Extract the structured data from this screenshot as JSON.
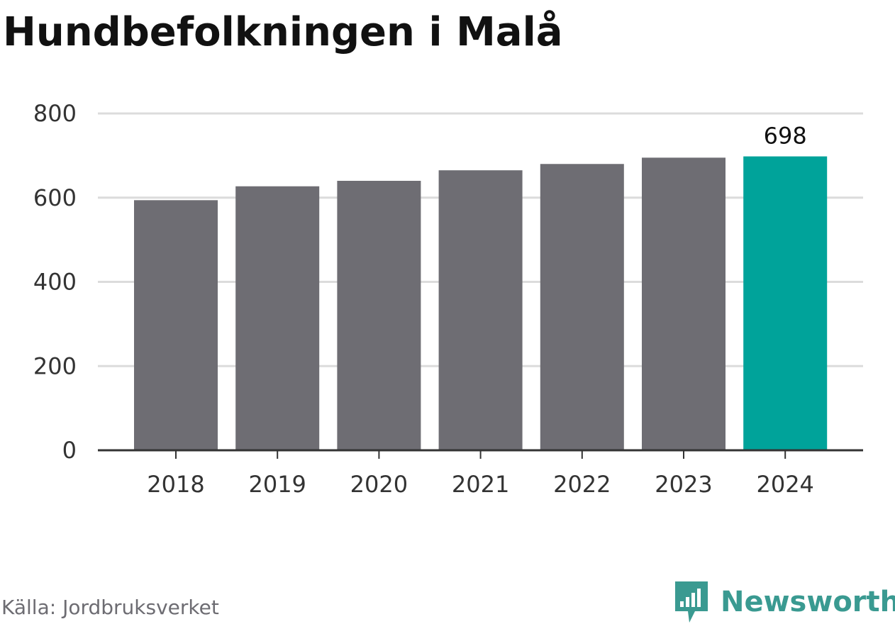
{
  "title": "Hundbefolkningen i Malå",
  "source": "Källa: Jordbruksverket",
  "brand": {
    "name": "Newsworthy",
    "icon": "newsworthy-logo-icon",
    "color": "#3a9a91"
  },
  "colors": {
    "bar": "#6e6d73",
    "highlight": "#00a39a",
    "grid": "#dcdcdc",
    "axis": "#333333",
    "tick_text": "#333333"
  },
  "chart_data": {
    "type": "bar",
    "categories": [
      "2018",
      "2019",
      "2020",
      "2021",
      "2022",
      "2023",
      "2024"
    ],
    "values": [
      594,
      627,
      640,
      665,
      680,
      695,
      698
    ],
    "highlight_index": 6,
    "data_labels": [
      {
        "index": 6,
        "text": "698"
      }
    ],
    "yticks": [
      "0",
      "200",
      "400",
      "600",
      "800"
    ],
    "ylim": [
      0,
      800
    ],
    "grid": true,
    "legend": "none"
  }
}
